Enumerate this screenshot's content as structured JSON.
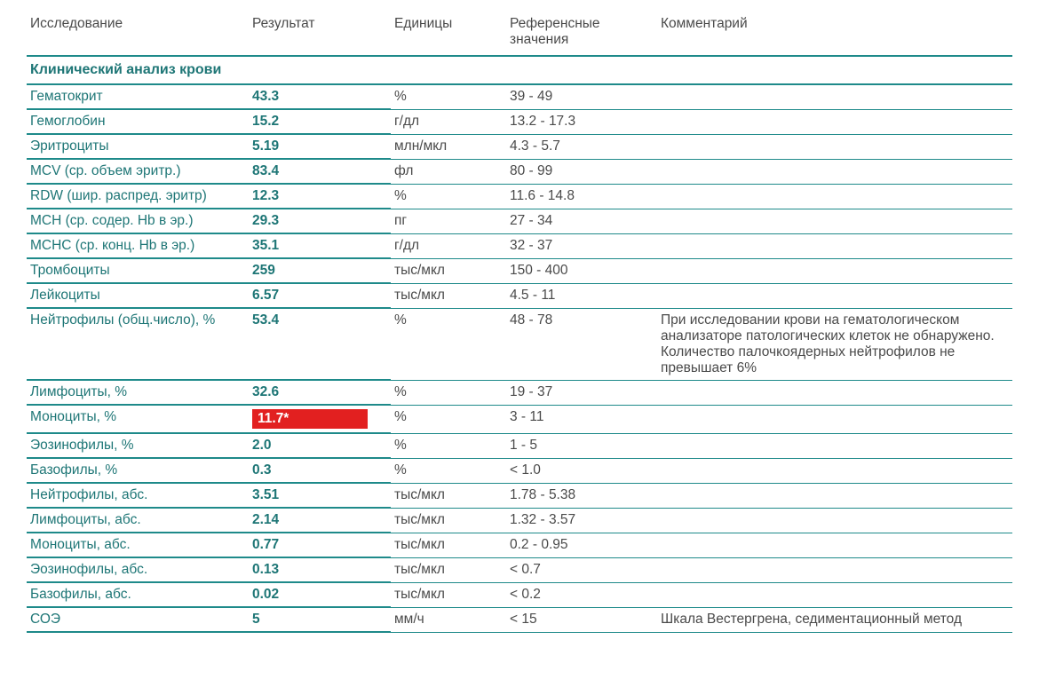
{
  "headers": {
    "test": "Исследование",
    "result": "Результат",
    "units": "Единицы",
    "reference": "Референсные значения",
    "comment": "Комментарий"
  },
  "section_title": "Клинический анализ крови",
  "colors": {
    "primary": "#1e7676",
    "border": "#1e8a8a",
    "text_gray": "#4a4a4a",
    "flag_bg": "#e22020",
    "flag_text": "#ffffff",
    "background": "#ffffff"
  },
  "rows": [
    {
      "name": "Гематокрит",
      "result": "43.3",
      "units": "%",
      "reference": "39 - 49",
      "comment": "",
      "flagged": false
    },
    {
      "name": "Гемоглобин",
      "result": "15.2",
      "units": "г/дл",
      "reference": "13.2 - 17.3",
      "comment": "",
      "flagged": false
    },
    {
      "name": "Эритроциты",
      "result": "5.19",
      "units": "млн/мкл",
      "reference": "4.3 - 5.7",
      "comment": "",
      "flagged": false
    },
    {
      "name": "MCV (ср. объем эритр.)",
      "result": "83.4",
      "units": "фл",
      "reference": "80 - 99",
      "comment": "",
      "flagged": false
    },
    {
      "name": "RDW (шир. распред. эритр)",
      "result": "12.3",
      "units": "%",
      "reference": "11.6 - 14.8",
      "comment": "",
      "flagged": false
    },
    {
      "name": "MCH (ср. содер. Hb в эр.)",
      "result": "29.3",
      "units": "пг",
      "reference": "27 - 34",
      "comment": "",
      "flagged": false
    },
    {
      "name": "MCHC (ср. конц. Hb в эр.)",
      "result": "35.1",
      "units": "г/дл",
      "reference": "32 - 37",
      "comment": "",
      "flagged": false
    },
    {
      "name": "Тромбоциты",
      "result": "259",
      "units": "тыс/мкл",
      "reference": "150 - 400",
      "comment": "",
      "flagged": false
    },
    {
      "name": "Лейкоциты",
      "result": "6.57",
      "units": "тыс/мкл",
      "reference": "4.5 - 11",
      "comment": "",
      "flagged": false
    },
    {
      "name": "Нейтрофилы (общ.число), %",
      "result": "53.4",
      "units": "%",
      "reference": "48 - 78",
      "comment": "При исследовании крови на гематологическом анализаторе патологических клеток не обнаружено. Количество палочкоядерных нейтрофилов не превышает 6%",
      "flagged": false
    },
    {
      "name": "Лимфоциты, %",
      "result": "32.6",
      "units": "%",
      "reference": "19 - 37",
      "comment": "",
      "flagged": false
    },
    {
      "name": "Моноциты, %",
      "result": "11.7*",
      "units": "%",
      "reference": "3 - 11",
      "comment": "",
      "flagged": true
    },
    {
      "name": "Эозинофилы, %",
      "result": "2.0",
      "units": "%",
      "reference": "1 - 5",
      "comment": "",
      "flagged": false
    },
    {
      "name": "Базофилы, %",
      "result": "0.3",
      "units": "%",
      "reference": "< 1.0",
      "comment": "",
      "flagged": false
    },
    {
      "name": "Нейтрофилы, абс.",
      "result": "3.51",
      "units": "тыс/мкл",
      "reference": "1.78 - 5.38",
      "comment": "",
      "flagged": false
    },
    {
      "name": "Лимфоциты, абс.",
      "result": "2.14",
      "units": "тыс/мкл",
      "reference": "1.32 - 3.57",
      "comment": "",
      "flagged": false
    },
    {
      "name": "Моноциты, абс.",
      "result": "0.77",
      "units": "тыс/мкл",
      "reference": "0.2 - 0.95",
      "comment": "",
      "flagged": false
    },
    {
      "name": "Эозинофилы, абс.",
      "result": "0.13",
      "units": "тыс/мкл",
      "reference": "< 0.7",
      "comment": "",
      "flagged": false
    },
    {
      "name": "Базофилы, абс.",
      "result": "0.02",
      "units": "тыс/мкл",
      "reference": "< 0.2",
      "comment": "",
      "flagged": false
    },
    {
      "name": "СОЭ",
      "result": "5",
      "units": "мм/ч",
      "reference": "< 15",
      "comment": "Шкала Вестергрена, седиментационный метод",
      "flagged": false
    }
  ]
}
